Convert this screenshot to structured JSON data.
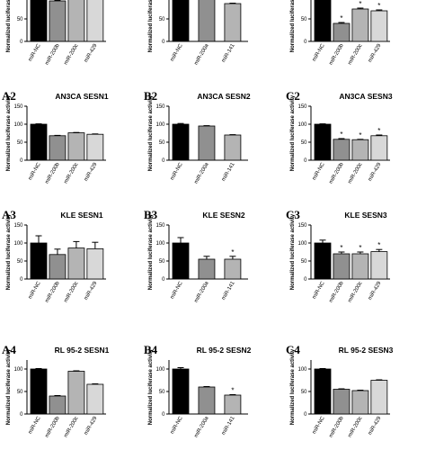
{
  "chart_data": [
    {
      "id": "A1",
      "panel_label": "",
      "title": "",
      "type": "bar",
      "ylabel": "Normalized luciferase activity",
      "categories": [
        "miR-NC",
        "miR-200b",
        "miR-200c",
        "miR-429"
      ],
      "values": [
        100,
        90,
        98,
        97
      ],
      "errors": [
        1,
        1,
        1,
        1
      ],
      "colors": [
        "#000000",
        "#909090",
        "#b4b4b4",
        "#d8d8d8"
      ],
      "significant": [
        false,
        false,
        false,
        false
      ],
      "ylim": [
        0,
        120
      ],
      "yticks": [
        0,
        50,
        100
      ],
      "bar_border": "#000000"
    },
    {
      "id": "B1",
      "panel_label": "",
      "title": "",
      "type": "bar",
      "ylabel": "Normalized luciferase activity",
      "categories": [
        "miR-NC",
        "miR-200a",
        "miR-141"
      ],
      "values": [
        100,
        95,
        84
      ],
      "errors": [
        1,
        1,
        1
      ],
      "colors": [
        "#000000",
        "#909090",
        "#b4b4b4"
      ],
      "significant": [
        false,
        false,
        false
      ],
      "ylim": [
        0,
        120
      ],
      "yticks": [
        0,
        50,
        100
      ],
      "bar_border": "#000000"
    },
    {
      "id": "C1",
      "panel_label": "",
      "title": "",
      "type": "bar",
      "ylabel": "Normalized luciferase activity",
      "categories": [
        "miR-NC",
        "miR-200b",
        "miR-200c",
        "miR-429"
      ],
      "values": [
        100,
        40,
        72,
        68
      ],
      "errors": [
        1,
        2,
        2,
        2
      ],
      "colors": [
        "#000000",
        "#909090",
        "#b4b4b4",
        "#d8d8d8"
      ],
      "significant": [
        false,
        true,
        true,
        true
      ],
      "ylim": [
        0,
        120
      ],
      "yticks": [
        0,
        50,
        100
      ],
      "bar_border": "#000000"
    },
    {
      "id": "A2",
      "panel_label": "A2",
      "title": "AN3CA SESN1",
      "type": "bar",
      "ylabel": "Normalized luciferase activity",
      "categories": [
        "miR-NC",
        "miR-200b",
        "miR-200c",
        "miR-429"
      ],
      "values": [
        100,
        68,
        76,
        72
      ],
      "errors": [
        1,
        1,
        1,
        1
      ],
      "colors": [
        "#000000",
        "#909090",
        "#b4b4b4",
        "#d8d8d8"
      ],
      "significant": [
        false,
        false,
        false,
        false
      ],
      "ylim": [
        0,
        150
      ],
      "yticks": [
        0,
        50,
        100,
        150
      ],
      "bar_border": "#000000"
    },
    {
      "id": "B2",
      "panel_label": "B2",
      "title": "AN3CA SESN2",
      "type": "bar",
      "ylabel": "Normalized luciferase activity",
      "categories": [
        "miR-NC",
        "miR-200a",
        "miR-141"
      ],
      "values": [
        100,
        95,
        70
      ],
      "errors": [
        2,
        1,
        1
      ],
      "colors": [
        "#000000",
        "#909090",
        "#b4b4b4"
      ],
      "significant": [
        false,
        false,
        false
      ],
      "ylim": [
        0,
        150
      ],
      "yticks": [
        0,
        50,
        100,
        150
      ],
      "bar_border": "#000000"
    },
    {
      "id": "C2",
      "panel_label": "C2",
      "title": "AN3CA SESN3",
      "type": "bar",
      "ylabel": "Normalized luciferase activity",
      "categories": [
        "miR-NC",
        "miR-200b",
        "miR-200c",
        "miR-429"
      ],
      "values": [
        100,
        58,
        57,
        68
      ],
      "errors": [
        1,
        2,
        1,
        2
      ],
      "colors": [
        "#000000",
        "#909090",
        "#b4b4b4",
        "#d8d8d8"
      ],
      "significant": [
        false,
        true,
        true,
        true
      ],
      "ylim": [
        0,
        150
      ],
      "yticks": [
        0,
        50,
        100,
        150
      ],
      "bar_border": "#000000"
    },
    {
      "id": "A3",
      "panel_label": "A3",
      "title": "KLE SESN1",
      "type": "bar",
      "ylabel": "Normalized luciferase activity",
      "categories": [
        "miR-NC",
        "miR-200b",
        "miR-200c",
        "miR-429"
      ],
      "values": [
        100,
        68,
        86,
        84
      ],
      "errors": [
        20,
        15,
        18,
        18
      ],
      "colors": [
        "#000000",
        "#909090",
        "#b4b4b4",
        "#d8d8d8"
      ],
      "significant": [
        false,
        false,
        false,
        false
      ],
      "ylim": [
        0,
        150
      ],
      "yticks": [
        0,
        50,
        100,
        150
      ],
      "bar_border": "#000000"
    },
    {
      "id": "B3",
      "panel_label": "B3",
      "title": "KLE SESN2",
      "type": "bar",
      "ylabel": "Normalized luciferase activity",
      "categories": [
        "miR-NC",
        "miR-200a",
        "miR-141"
      ],
      "values": [
        100,
        55,
        55
      ],
      "errors": [
        15,
        8,
        8
      ],
      "colors": [
        "#000000",
        "#909090",
        "#b4b4b4"
      ],
      "significant": [
        false,
        false,
        true
      ],
      "ylim": [
        0,
        150
      ],
      "yticks": [
        0,
        50,
        100,
        150
      ],
      "bar_border": "#000000"
    },
    {
      "id": "C3",
      "panel_label": "C3",
      "title": "KLE SESN3",
      "type": "bar",
      "ylabel": "Normalized luciferase activity",
      "categories": [
        "miR-NC",
        "miR-200b",
        "miR-200c",
        "miR-429"
      ],
      "values": [
        100,
        70,
        70,
        76
      ],
      "errors": [
        8,
        5,
        5,
        6
      ],
      "colors": [
        "#000000",
        "#909090",
        "#b4b4b4",
        "#d8d8d8"
      ],
      "significant": [
        false,
        true,
        true,
        true
      ],
      "ylim": [
        0,
        150
      ],
      "yticks": [
        0,
        50,
        100,
        150
      ],
      "bar_border": "#000000"
    },
    {
      "id": "A4",
      "panel_label": "A4",
      "title": "RL 95-2 SESN1",
      "type": "bar",
      "ylabel": "Normalized luciferase activity",
      "categories": [
        "miR-NC",
        "miR-200b",
        "miR-200c",
        "miR-429"
      ],
      "values": [
        100,
        40,
        95,
        66
      ],
      "errors": [
        1,
        1,
        1,
        1
      ],
      "colors": [
        "#000000",
        "#909090",
        "#b4b4b4",
        "#d8d8d8"
      ],
      "significant": [
        false,
        false,
        false,
        false
      ],
      "ylim": [
        0,
        120
      ],
      "yticks": [
        0,
        50,
        100
      ],
      "bar_border": "#000000"
    },
    {
      "id": "B4",
      "panel_label": "B4",
      "title": "RL 95-2 SESN2",
      "type": "bar",
      "ylabel": "Normalized luciferase activity",
      "categories": [
        "miR-NC",
        "miR-200a",
        "miR-141"
      ],
      "values": [
        100,
        60,
        42
      ],
      "errors": [
        3,
        1,
        1
      ],
      "colors": [
        "#000000",
        "#909090",
        "#b4b4b4"
      ],
      "significant": [
        false,
        false,
        true
      ],
      "ylim": [
        0,
        120
      ],
      "yticks": [
        0,
        50,
        100
      ],
      "bar_border": "#000000"
    },
    {
      "id": "C4",
      "panel_label": "C4",
      "title": "RL 95-2 SESN3",
      "type": "bar",
      "ylabel": "Normalized luciferase activity",
      "categories": [
        "miR-NC",
        "miR-200b",
        "miR-200c",
        "miR-429"
      ],
      "values": [
        100,
        55,
        52,
        75
      ],
      "errors": [
        1,
        1,
        1,
        1
      ],
      "colors": [
        "#000000",
        "#909090",
        "#b4b4b4",
        "#d8d8d8"
      ],
      "significant": [
        false,
        false,
        false,
        false
      ],
      "ylim": [
        0,
        120
      ],
      "yticks": [
        0,
        50,
        100
      ],
      "bar_border": "#000000"
    }
  ],
  "significance_marker": "*"
}
